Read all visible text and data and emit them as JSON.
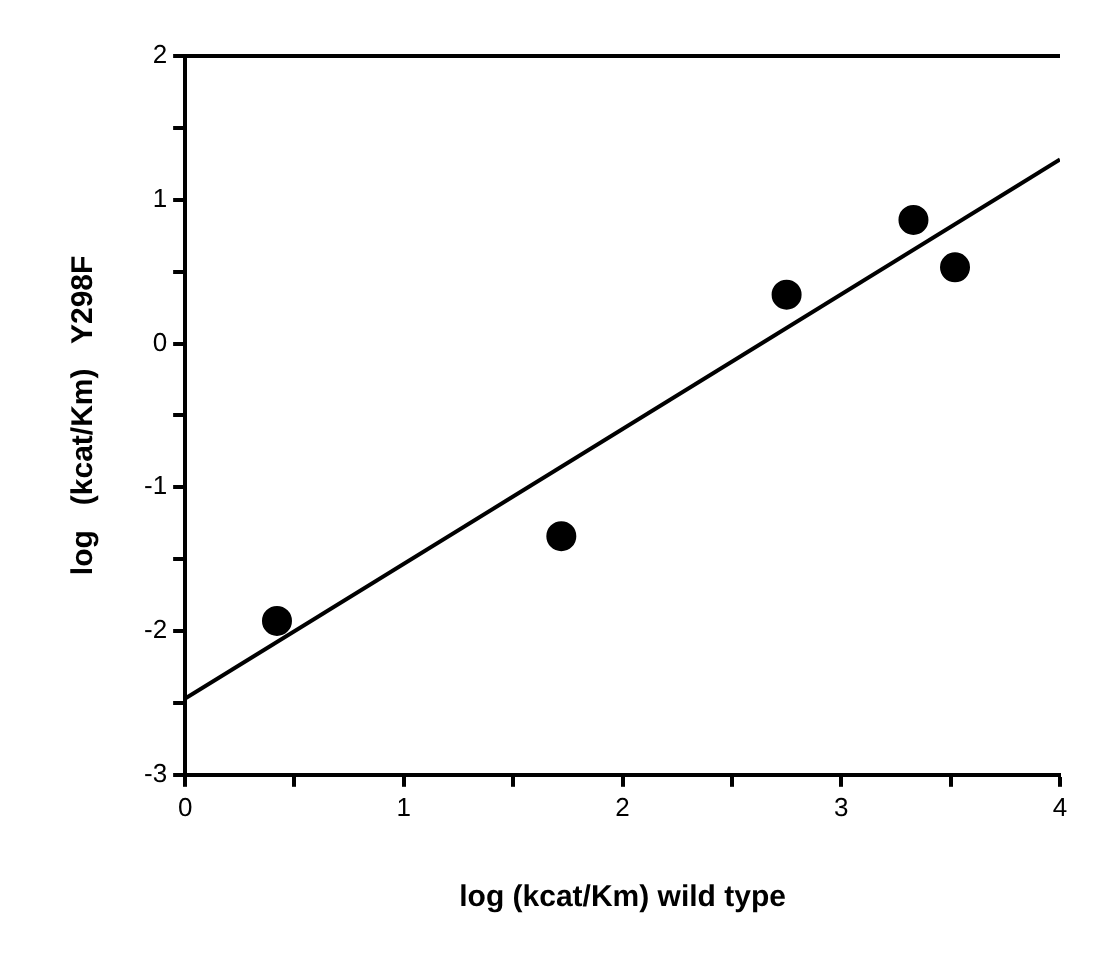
{
  "chart_data": {
    "type": "scatter",
    "xlabel": "log (kcat/Km) wild type",
    "ylabel": "log   (kcat/Km)   Y298F",
    "xlim": [
      0,
      4
    ],
    "ylim": [
      -3,
      2
    ],
    "xticks": [
      0,
      {
        "value": 0.5,
        "label": null
      },
      1,
      {
        "value": 1.5,
        "label": null
      },
      2,
      {
        "value": 2.5,
        "label": null
      },
      3,
      {
        "value": 3.5,
        "label": null
      },
      4
    ],
    "yticks": [
      -3,
      {
        "value": -2.5,
        "label": null
      },
      -2,
      {
        "value": -1.5,
        "label": null
      },
      -1,
      {
        "value": -0.5,
        "label": null
      },
      0,
      {
        "value": 0.5,
        "label": null
      },
      1,
      {
        "value": 1.5,
        "label": null
      },
      2
    ],
    "grid": false,
    "legend": false,
    "marker": "circle",
    "series": [
      {
        "type": "scatter",
        "color": "#000000",
        "x": [
          0.42,
          1.72,
          2.75,
          3.33,
          3.52
        ],
        "values": [
          -1.93,
          -1.34,
          0.34,
          0.86,
          0.53
        ]
      },
      {
        "type": "line",
        "color": "#000000",
        "marker": "none",
        "x": [
          0,
          4
        ],
        "values": [
          -2.47,
          1.28
        ]
      }
    ]
  }
}
